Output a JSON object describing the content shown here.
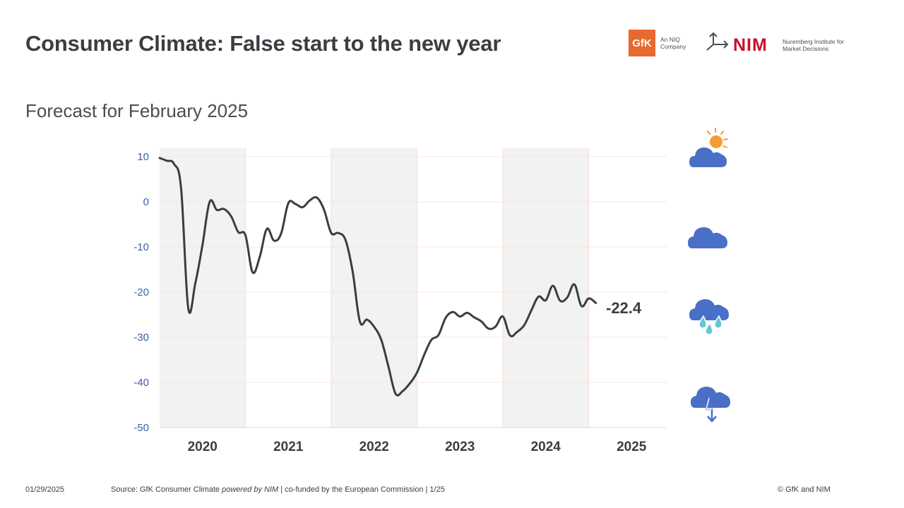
{
  "header": {
    "title": "Consumer Climate: False start to the new year",
    "subtitle": "Forecast for February 2025"
  },
  "logos": {
    "gfk_mark": "GfK",
    "gfk_tagline": "An NIQ Company",
    "nim_mark": "NIM",
    "nim_tagline": "Nuremberg Institute for Market Decisions"
  },
  "weather_icons": [
    "partly-sunny-icon",
    "cloud-icon",
    "rain-cloud-icon",
    "thunderstorm-cloud-icon"
  ],
  "footer": {
    "date": "01/29/2025",
    "source_prefix": "Source: GfK Consumer Climate ",
    "source_powered": "powered by NIM",
    "source_suffix": " | co-funded by the European Commission | 1/25",
    "copyright": "© GfK and NIM"
  },
  "colors": {
    "line": "#3a3d42",
    "axis_tick": "#3d5ea8",
    "shade": "#f2f2f2",
    "grid": "#f8e6dc",
    "icon_blue": "#4a6fc7",
    "sun": "#f39c33",
    "rain": "#5fc8d6"
  },
  "chart_data": {
    "type": "line",
    "title": "",
    "xlabel": "",
    "ylabel": "",
    "ylim": [
      -50,
      10
    ],
    "yticks": [
      10,
      0,
      -10,
      -20,
      -30,
      -40,
      -50
    ],
    "x_tick_labels": [
      "2020",
      "2021",
      "2022",
      "2023",
      "2024",
      "2025"
    ],
    "shaded_years": [
      "2020",
      "2022",
      "2024"
    ],
    "grid": true,
    "end_label": "-22.4",
    "series": [
      {
        "x": [
          "2020-01",
          "2020-02",
          "2020-03",
          "2020-04",
          "2020-05",
          "2020-06",
          "2020-07",
          "2020-08",
          "2020-09",
          "2020-10",
          "2020-11",
          "2020-12",
          "2021-01",
          "2021-02",
          "2021-03",
          "2021-04",
          "2021-05",
          "2021-06",
          "2021-07",
          "2021-08",
          "2021-09",
          "2021-10",
          "2021-11",
          "2021-12",
          "2022-01",
          "2022-02",
          "2022-03",
          "2022-04",
          "2022-05",
          "2022-06",
          "2022-07",
          "2022-08",
          "2022-09",
          "2022-10",
          "2022-11",
          "2022-12",
          "2023-01",
          "2023-02",
          "2023-03",
          "2023-04",
          "2023-05",
          "2023-06",
          "2023-07",
          "2023-08",
          "2023-09",
          "2023-10",
          "2023-11",
          "2023-12",
          "2024-01",
          "2024-02",
          "2024-03",
          "2024-04",
          "2024-05",
          "2024-06",
          "2024-07",
          "2024-08",
          "2024-09",
          "2024-10",
          "2024-11",
          "2024-12",
          "2025-01",
          "2025-02"
        ],
        "values": [
          9.7,
          9.1,
          8.4,
          3.0,
          -23.5,
          -18.0,
          -9.5,
          0.0,
          -1.8,
          -1.6,
          -3.2,
          -6.7,
          -7.4,
          -15.6,
          -12.2,
          -6.0,
          -8.6,
          -7.0,
          -0.3,
          -0.5,
          -1.2,
          0.3,
          0.9,
          -1.8,
          -6.9,
          -6.9,
          -8.5,
          -15.5,
          -26.5,
          -26.1,
          -27.7,
          -30.6,
          -36.5,
          -42.5,
          -41.9,
          -40.2,
          -37.8,
          -33.9,
          -30.6,
          -29.5,
          -25.7,
          -24.4,
          -25.4,
          -24.6,
          -25.6,
          -26.5,
          -28.1,
          -27.6,
          -25.4,
          -29.6,
          -28.8,
          -27.3,
          -24.0,
          -21.0,
          -21.8,
          -18.6,
          -21.9,
          -21.2,
          -18.3,
          -23.1,
          -21.4,
          -22.4
        ]
      }
    ]
  }
}
